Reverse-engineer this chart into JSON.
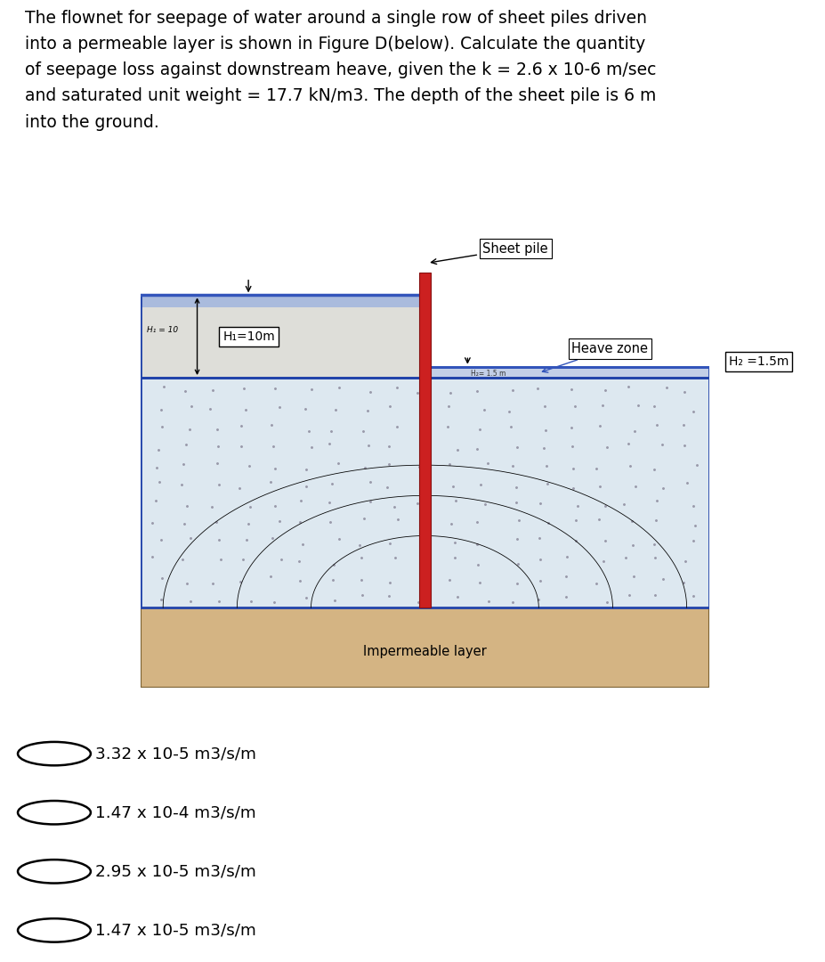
{
  "title_lines": [
    "The flownet for seepage of water around a single row of sheet piles driven",
    "into a permeable layer is shown in Figure D(below). Calculate the quantity",
    "of seepage loss against downstream heave, given the k = 2.6 x 10-6 m/sec",
    "and saturated unit weight = 17.7 kN/m3. The depth of the sheet pile is 6 m",
    "into the ground."
  ],
  "options": [
    "3.32 x 10-5 m3/s/m",
    "1.47 x 10-4 m3/s/m",
    "2.95 x 10-5 m3/s/m",
    "1.47 x 10-5 m3/s/m"
  ],
  "sheet_pile_label": "Sheet pile",
  "heave_zone_label": "Heave zone",
  "H1_label": "H₁=10m",
  "H2_label": "H₂ =1.5m",
  "H1_small": "H₁ = 10",
  "H2_small": "H₂= 1.5 m",
  "impermeable_label": "Impermeable layer",
  "pile_color": "#cc2020",
  "perm_layer_color": "#dde8f0",
  "perm_dot_color": "#888899",
  "imp_layer_color": "#d4b483",
  "water_color": "#c0cfe0",
  "water_line_color": "#3355bb",
  "background": "#ffffff"
}
